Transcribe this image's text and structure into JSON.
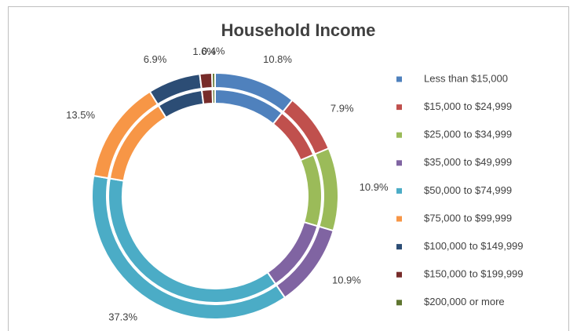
{
  "chart_data": {
    "type": "doughnut",
    "title": "Household Income",
    "categories": [
      "Less than $15,000",
      "$15,000 to $24,999",
      "$25,000 to $34,999",
      "$35,000 to $49,999",
      "$50,000 to $74,999",
      "$75,000 to $99,999",
      "$100,000 to $149,999",
      "$150,000 to $199,999",
      "$200,000 or more"
    ],
    "values": [
      10.8,
      7.9,
      10.9,
      10.9,
      37.3,
      13.5,
      6.9,
      1.6,
      0.4
    ],
    "value_labels": [
      "10.8%",
      "7.9%",
      "10.9%",
      "10.9%",
      "37.3%",
      "13.5%",
      "6.9%",
      "1.6%",
      "0.4%"
    ],
    "inner_values": [
      10.8,
      7.9,
      10.9,
      10.9,
      37.3,
      13.5,
      6.9,
      1.6,
      0.4
    ],
    "colors": [
      "#4f81bd",
      "#c0504d",
      "#9bbb59",
      "#8064a2",
      "#4bacc6",
      "#f79646",
      "#2c4d75",
      "#772c2a",
      "#5f7530"
    ],
    "legend": "right"
  }
}
